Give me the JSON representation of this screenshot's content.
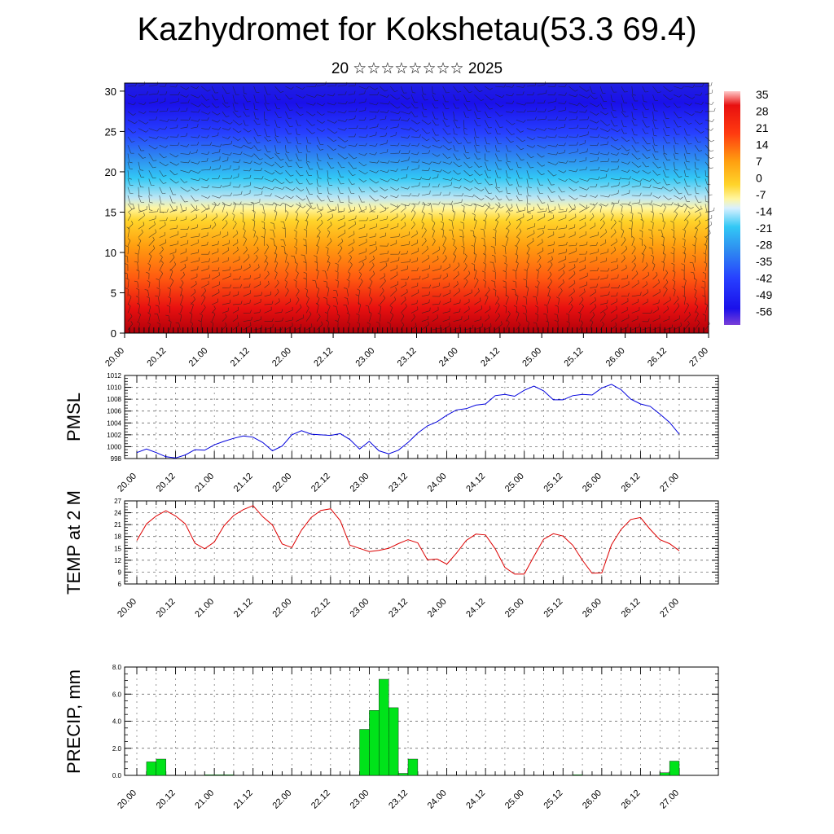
{
  "title": "Kazhydromet for Kokshetau(53.3 69.4)",
  "subtitle": "20 ☆☆☆☆☆☆☆☆ 2025",
  "chart_data": [
    {
      "type": "heatmap",
      "x_ticks": [
        "20.00",
        "20.12",
        "21.00",
        "21.12",
        "22.00",
        "22.12",
        "23.00",
        "23.12",
        "24.00",
        "24.12",
        "25.00",
        "25.12",
        "26.00",
        "26.12",
        "27.00"
      ],
      "y_ticks": [
        0,
        5,
        10,
        15,
        20,
        25,
        30
      ],
      "ylim": [
        0,
        31
      ],
      "colorbar_labels": [
        "35",
        "28",
        "21",
        "14",
        "7",
        "0",
        "-7",
        "-14",
        "-21",
        "-28",
        "-35",
        "-42",
        "-49",
        "-56"
      ],
      "colors": [
        "#7a3fd8",
        "#1a10ea",
        "#2740ff",
        "#2e8cf0",
        "#32c8f5",
        "#bfe6f4",
        "#fff6a0",
        "#ffd42a",
        "#ff9f10",
        "#ff5a10",
        "#e81010",
        "#c80a0a"
      ]
    },
    {
      "type": "line",
      "ylabel": "PMSL",
      "ylim": [
        998,
        1012
      ],
      "y_ticks": [
        998,
        1000,
        1002,
        1004,
        1006,
        1008,
        1010,
        1012
      ],
      "x_ticks": [
        "20.00",
        "20.12",
        "21.00",
        "21.12",
        "22.00",
        "22.12",
        "23.00",
        "23.12",
        "24.00",
        "24.12",
        "25.00",
        "25.12",
        "26.00",
        "26.12",
        "27.00"
      ],
      "x": [
        0,
        3,
        6,
        9,
        12,
        15,
        18,
        21,
        24,
        27,
        30,
        33,
        36,
        39,
        42,
        45,
        48,
        51,
        54,
        57,
        60,
        63,
        66,
        69,
        72,
        75,
        78,
        81,
        84,
        87,
        90,
        93,
        96,
        99,
        102,
        105,
        108,
        111,
        114,
        117,
        120,
        123,
        126,
        129,
        132,
        135,
        138,
        141,
        144,
        147,
        150,
        153,
        156,
        159,
        162,
        165,
        168
      ],
      "values": [
        999.0,
        999.6,
        999.0,
        998.3,
        998.1,
        998.6,
        999.5,
        999.4,
        1000.3,
        1000.9,
        1001.4,
        1001.8,
        1001.6,
        1000.7,
        999.3,
        1000.1,
        1002.0,
        1002.7,
        1002.1,
        1002.0,
        1001.9,
        1002.2,
        1001.2,
        999.6,
        1000.9,
        999.3,
        998.8,
        999.4,
        1000.7,
        1002.3,
        1003.5,
        1004.2,
        1005.3,
        1006.2,
        1006.4,
        1007.0,
        1007.2,
        1008.6,
        1008.8,
        1008.5,
        1009.5,
        1010.2,
        1009.4,
        1007.9,
        1007.9,
        1008.6,
        1008.8,
        1008.7,
        1009.9,
        1010.5,
        1009.6,
        1008.0,
        1007.2,
        1006.8,
        1005.5,
        1004.1,
        1002.1
      ],
      "color": "#0000dd"
    },
    {
      "type": "line",
      "ylabel": "TEMP at 2 M",
      "ylim": [
        6,
        27
      ],
      "y_ticks": [
        6,
        9,
        12,
        15,
        18,
        21,
        24,
        27
      ],
      "x_ticks": [
        "20.00",
        "20.12",
        "21.00",
        "21.12",
        "22.00",
        "22.12",
        "23.00",
        "23.12",
        "24.00",
        "24.12",
        "25.00",
        "25.12",
        "26.00",
        "26.12",
        "27.00"
      ],
      "x": [
        0,
        3,
        6,
        9,
        12,
        15,
        18,
        21,
        24,
        27,
        30,
        33,
        36,
        39,
        42,
        45,
        48,
        51,
        54,
        57,
        60,
        63,
        66,
        69,
        72,
        75,
        78,
        81,
        84,
        87,
        90,
        93,
        96,
        99,
        102,
        105,
        108,
        111,
        114,
        117,
        120,
        123,
        126,
        129,
        132,
        135,
        138,
        141,
        144,
        147,
        150,
        153,
        156,
        159,
        162,
        165,
        168
      ],
      "values": [
        17.0,
        21.2,
        23.2,
        24.5,
        23.2,
        21.2,
        16.3,
        14.9,
        16.6,
        20.7,
        23.3,
        24.8,
        25.8,
        23.0,
        20.9,
        16.1,
        15.2,
        19.6,
        22.8,
        24.6,
        25.0,
        22.0,
        15.8,
        15.0,
        14.2,
        14.5,
        15.0,
        16.2,
        17.2,
        16.4,
        12.1,
        12.3,
        11.0,
        13.8,
        17.0,
        18.6,
        18.4,
        14.9,
        10.2,
        8.5,
        8.5,
        13.0,
        17.3,
        18.7,
        18.1,
        15.8,
        12.0,
        8.7,
        8.8,
        15.9,
        19.8,
        22.3,
        22.8,
        19.8,
        17.2,
        16.2,
        14.4
      ],
      "color": "#dd0000"
    },
    {
      "type": "bar",
      "ylabel": "PRECIP, mm",
      "ylim": [
        0,
        8
      ],
      "y_ticks": [
        "0.0",
        "2.0",
        "4.0",
        "6.0",
        "8.0"
      ],
      "x_ticks": [
        "20.00",
        "20.12",
        "21.00",
        "21.12",
        "22.00",
        "22.12",
        "23.00",
        "23.12",
        "24.00",
        "24.12",
        "25.00",
        "25.12",
        "26.00",
        "26.12",
        "27.00"
      ],
      "x": [
        3,
        6,
        9,
        12,
        15,
        18,
        21,
        24,
        27,
        30,
        33,
        36,
        39,
        42,
        45,
        48,
        51,
        54,
        57,
        60,
        63,
        66,
        69,
        72,
        75,
        78,
        81,
        84,
        87,
        90,
        93,
        96,
        99,
        102,
        105,
        108,
        111,
        114,
        117,
        120,
        123,
        126,
        129,
        132,
        135,
        138,
        141,
        144,
        147,
        150,
        153,
        156,
        159,
        162,
        165,
        168
      ],
      "values": [
        0,
        1.0,
        1.2,
        0,
        0,
        0,
        0,
        0.05,
        0.05,
        0.05,
        0,
        0,
        0,
        0,
        0,
        0,
        0,
        0,
        0,
        0,
        0,
        0,
        0,
        3.4,
        4.8,
        7.1,
        5.0,
        0.15,
        1.2,
        0,
        0,
        0,
        0,
        0,
        0,
        0,
        0,
        0,
        0,
        0,
        0,
        0,
        0,
        0,
        0,
        0.05,
        0,
        0,
        0,
        0,
        0,
        0,
        0,
        0,
        0.2,
        1.05
      ],
      "color": "#00e31a"
    }
  ]
}
